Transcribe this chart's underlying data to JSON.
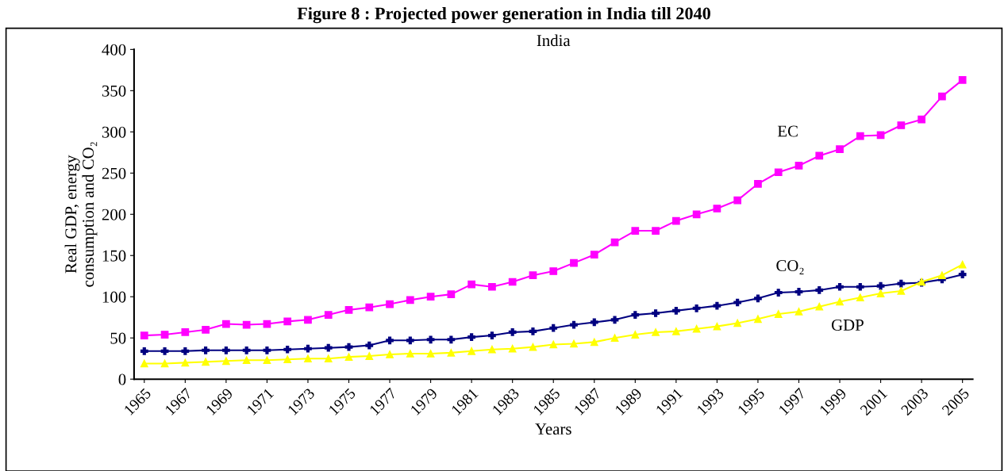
{
  "chart_data": {
    "type": "line",
    "title": "India",
    "xlabel": "Years",
    "ylabel": "Real GDP, energy\nconsumption and CO₂",
    "annotations": [
      "Figure 8 : Projected power generation in India till 2040"
    ],
    "x": [
      1965,
      1966,
      1967,
      1968,
      1969,
      1970,
      1971,
      1972,
      1973,
      1974,
      1975,
      1976,
      1977,
      1978,
      1979,
      1980,
      1981,
      1982,
      1983,
      1984,
      1985,
      1986,
      1987,
      1988,
      1989,
      1990,
      1991,
      1992,
      1993,
      1994,
      1995,
      1996,
      1997,
      1998,
      1999,
      2000,
      2001,
      2002,
      2003,
      2004,
      2005
    ],
    "xlim": [
      1964.5,
      2005.5
    ],
    "xticks": [
      1965,
      1967,
      1969,
      1971,
      1973,
      1975,
      1977,
      1979,
      1981,
      1983,
      1985,
      1987,
      1989,
      1991,
      1993,
      1995,
      1997,
      1999,
      2001,
      2003,
      2005
    ],
    "ylim": [
      0,
      400
    ],
    "yticks": [
      0,
      50,
      100,
      150,
      200,
      250,
      300,
      350,
      400
    ],
    "grid": false,
    "legend": false,
    "series": [
      {
        "name": "EC",
        "color": "#ff00ff",
        "marker": "square",
        "values": [
          53,
          54,
          57,
          60,
          67,
          66,
          67,
          70,
          72,
          78,
          84,
          87,
          91,
          96,
          100,
          103,
          115,
          112,
          118,
          126,
          131,
          141,
          151,
          166,
          180,
          180,
          192,
          200,
          207,
          217,
          237,
          251,
          259,
          271,
          279,
          295,
          296,
          308,
          315,
          343,
          363
        ]
      },
      {
        "name": "CO₂",
        "color": "#000080",
        "marker": "cross",
        "values": [
          34,
          34,
          34,
          35,
          35,
          35,
          35,
          36,
          37,
          38,
          39,
          41,
          47,
          47,
          48,
          48,
          51,
          53,
          57,
          58,
          62,
          66,
          69,
          72,
          78,
          80,
          83,
          86,
          89,
          93,
          98,
          105,
          106,
          108,
          112,
          112,
          113,
          116,
          117,
          121,
          127
        ]
      },
      {
        "name": "GDP",
        "color": "#ffff00",
        "marker": "triangle",
        "values": [
          19,
          19,
          20,
          21,
          22,
          23,
          23,
          24,
          25,
          25,
          27,
          28,
          30,
          31,
          31,
          32,
          34,
          36,
          37,
          39,
          42,
          43,
          45,
          50,
          54,
          57,
          58,
          61,
          64,
          68,
          73,
          79,
          82,
          88,
          94,
          99,
          104,
          107,
          118,
          126,
          139
        ]
      }
    ]
  }
}
